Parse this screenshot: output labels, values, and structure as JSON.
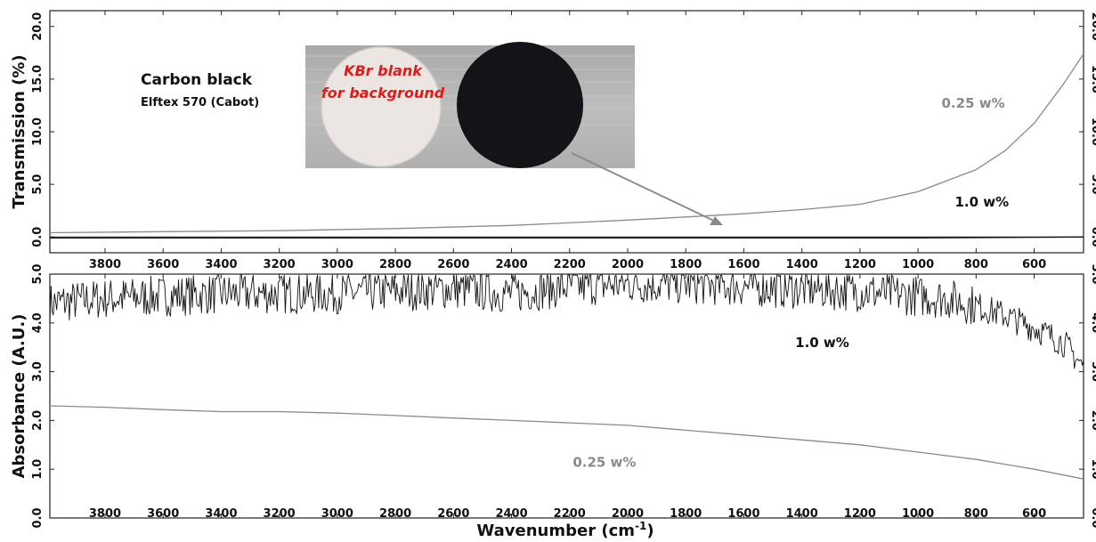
{
  "figure": {
    "title": "Carbon black",
    "subtitle": "Elftex 570 (Cabot)",
    "photo": {
      "label_line1": "KBr blank",
      "label_line2": "for background"
    },
    "xlabel_base": "Wavenumber (cm",
    "xlabel_sup": "-1",
    "xlabel_close": ")"
  },
  "chart_data": [
    {
      "type": "line",
      "panel": "top",
      "ylabel": "Transmission (%)",
      "xlim": [
        3990,
        430
      ],
      "ylim": [
        -1.5,
        21.5
      ],
      "x_ticks": [
        3800,
        3600,
        3400,
        3200,
        3000,
        2800,
        2600,
        2400,
        2200,
        2000,
        1800,
        1600,
        1400,
        1200,
        1000,
        800,
        600
      ],
      "y_ticks": [
        0.0,
        5.0,
        10.0,
        15.0,
        20.0
      ],
      "x_tick_labels": [
        "3800",
        "3600",
        "3400",
        "3200",
        "3000",
        "2800",
        "2600",
        "2400",
        "2200",
        "2000",
        "1800",
        "1600",
        "1400",
        "1200",
        "1000",
        "800",
        "600"
      ],
      "y_tick_labels": [
        "0.0",
        "5.0",
        "10.0",
        "15.0",
        "20.0"
      ],
      "series": [
        {
          "name": "0.25 w%",
          "color": "#8a8a8a",
          "x": [
            3990,
            3600,
            3200,
            2800,
            2400,
            2000,
            1800,
            1600,
            1400,
            1200,
            1000,
            800,
            700,
            600,
            500,
            430
          ],
          "y": [
            0.4,
            0.5,
            0.6,
            0.8,
            1.1,
            1.6,
            1.9,
            2.2,
            2.6,
            3.1,
            4.3,
            6.4,
            8.2,
            10.8,
            14.5,
            17.4
          ]
        },
        {
          "name": "1.0 w%",
          "color": "#111111",
          "x": [
            3990,
            3000,
            2000,
            1000,
            430
          ],
          "y": [
            -0.1,
            -0.1,
            -0.1,
            -0.1,
            0.0
          ]
        }
      ],
      "annotations": [
        {
          "text": "0.25 w%",
          "x": 810,
          "y": 12.3,
          "color": "#8a8a8a"
        },
        {
          "text": "1.0 w%",
          "x": 780,
          "y": 2.9,
          "color": "#111111"
        }
      ]
    },
    {
      "type": "line",
      "panel": "bottom",
      "ylabel": "Absorbance (A.U.)",
      "xlim": [
        3990,
        430
      ],
      "ylim": [
        0.0,
        5.0
      ],
      "x_ticks": [
        3800,
        3600,
        3400,
        3200,
        3000,
        2800,
        2600,
        2400,
        2200,
        2000,
        1800,
        1600,
        1400,
        1200,
        1000,
        800,
        600
      ],
      "y_ticks": [
        0.0,
        1.0,
        2.0,
        3.0,
        4.0,
        5.0
      ],
      "x_tick_labels": [
        "3800",
        "3600",
        "3400",
        "3200",
        "3000",
        "2800",
        "2600",
        "2400",
        "2200",
        "2000",
        "1800",
        "1600",
        "1400",
        "1200",
        "1000",
        "800",
        "600"
      ],
      "y_tick_labels": [
        "0.0",
        "1.0",
        "2.0",
        "3.0",
        "4.0",
        "5.0"
      ],
      "series": [
        {
          "name": "1.0 w%",
          "color": "#111111",
          "x": [
            3990,
            3800,
            3600,
            3400,
            3200,
            3000,
            2800,
            2600,
            2400,
            2200,
            2000,
            1800,
            1600,
            1400,
            1200,
            1000,
            900,
            800,
            700,
            600,
            500,
            430
          ],
          "y": [
            4.4,
            4.5,
            4.55,
            4.6,
            4.6,
            4.6,
            4.65,
            4.7,
            4.6,
            4.75,
            4.8,
            4.8,
            4.75,
            4.7,
            4.65,
            4.55,
            4.5,
            4.35,
            4.15,
            3.9,
            3.6,
            3.1
          ]
        },
        {
          "name": "0.25 w%",
          "color": "#8a8a8a",
          "x": [
            3990,
            3800,
            3600,
            3400,
            3200,
            3000,
            2800,
            2600,
            2400,
            2200,
            2000,
            1800,
            1600,
            1400,
            1200,
            1000,
            800,
            600,
            430
          ],
          "y": [
            2.3,
            2.27,
            2.22,
            2.18,
            2.18,
            2.15,
            2.1,
            2.05,
            2.0,
            1.95,
            1.9,
            1.8,
            1.7,
            1.6,
            1.5,
            1.35,
            1.2,
            1.0,
            0.8
          ]
        }
      ],
      "annotations": [
        {
          "text": "1.0 w%",
          "x": 1330,
          "y": 3.5,
          "color": "#111111"
        },
        {
          "text": "0.25 w%",
          "x": 2080,
          "y": 1.05,
          "color": "#8a8a8a"
        }
      ]
    }
  ]
}
